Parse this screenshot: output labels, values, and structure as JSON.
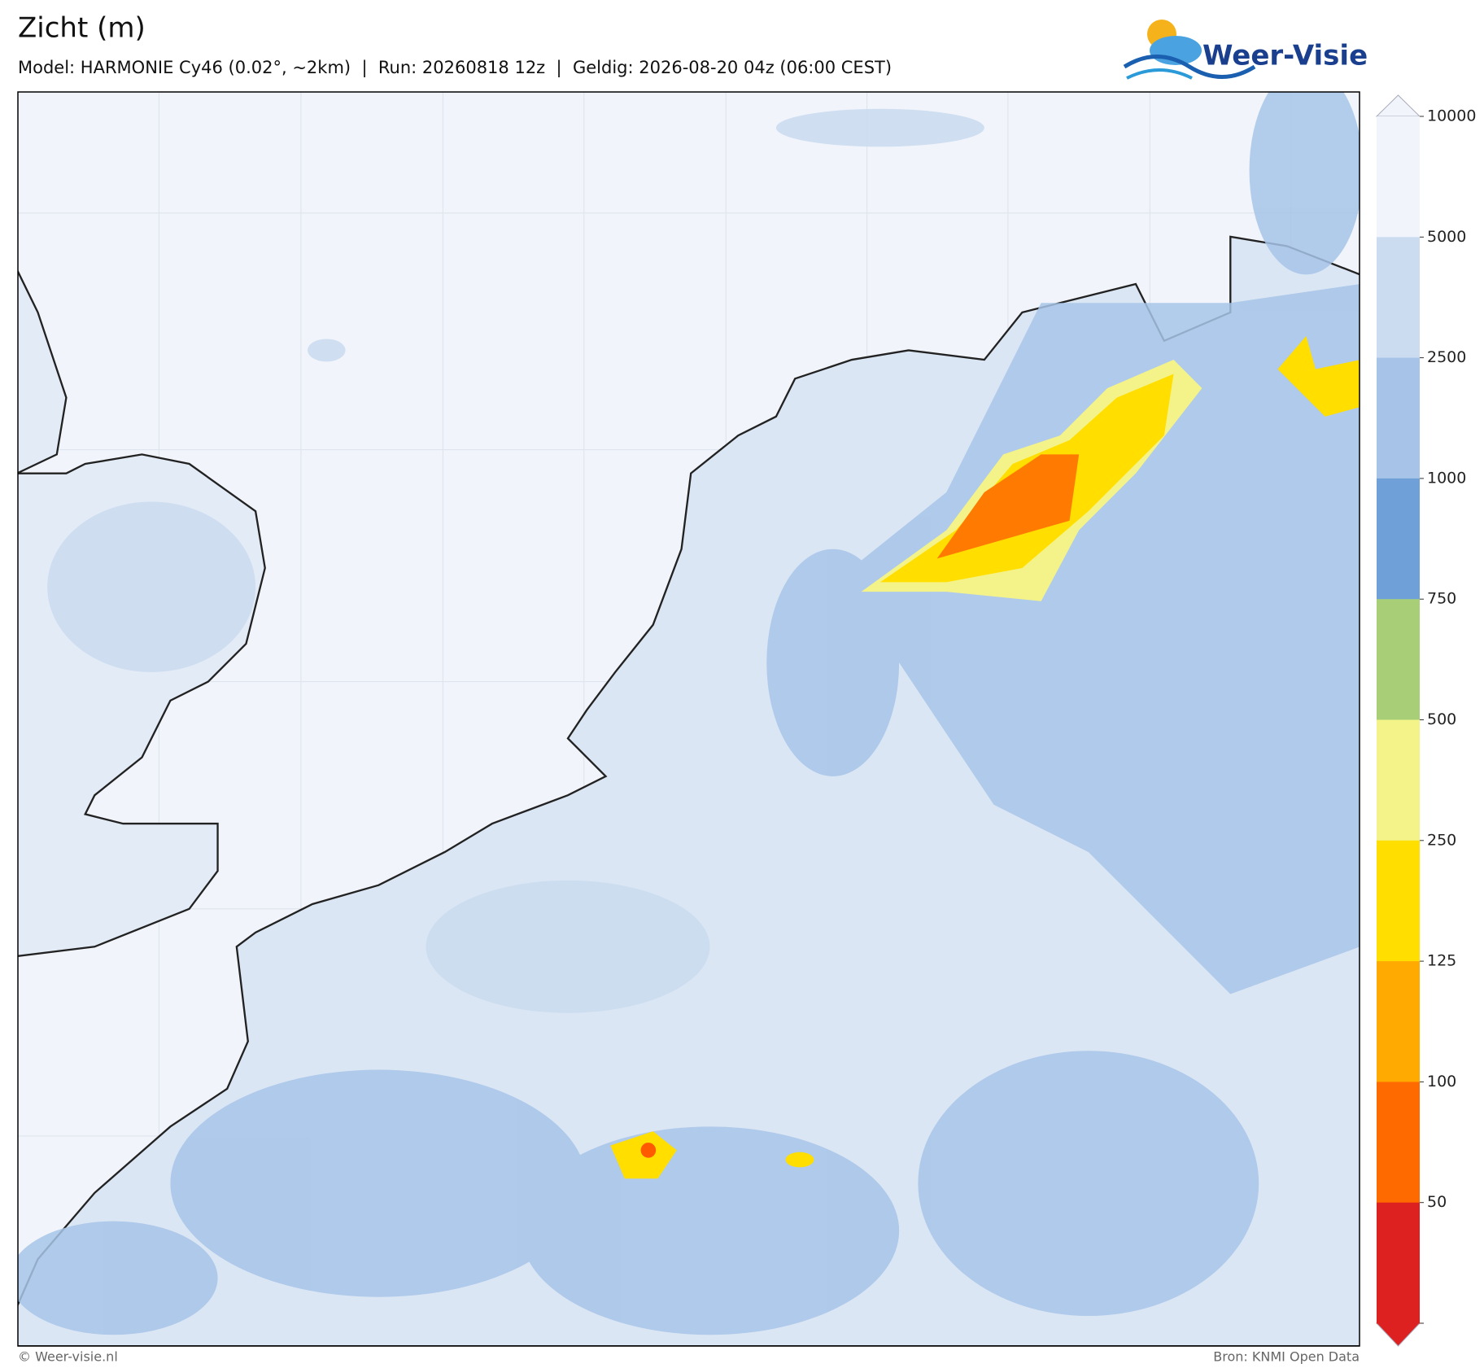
{
  "header": {
    "title": "Zicht (m)",
    "subtitle": "Model: HARMONIE Cy46 (0.02°, ~2km)  |  Run: 20260818 12z  |  Geldig: 2026-08-20 04z (06:00 CEST)"
  },
  "logo": {
    "text": "Weer-Visie"
  },
  "colorbar": {
    "ticks": [
      10000,
      5000,
      2500,
      1000,
      750,
      500,
      250,
      125,
      100,
      50
    ],
    "colors": [
      "#f1f5fb",
      "#cbdcf0",
      "#a7c4e8",
      "#6fa0d8",
      "#a8cf78",
      "#f4f38a",
      "#ffde00",
      "#ffaa00",
      "#ff6a00",
      "#dd2020"
    ]
  },
  "footer": {
    "left": "© Weer-visie.nl",
    "right": "Bron: KNMI Open Data"
  }
}
